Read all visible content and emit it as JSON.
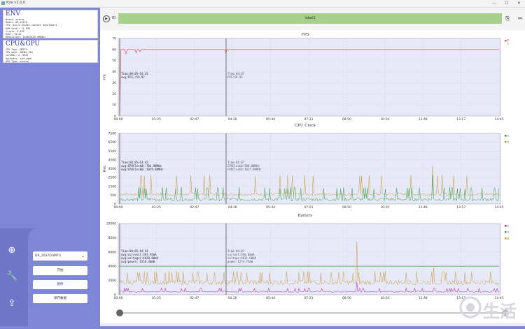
{
  "window": {
    "title": "Kite v1.0.0",
    "min": "—",
    "max": "☐",
    "close": "✕"
  },
  "env": {
    "title": "ENV",
    "lines": [
      "Brand: xxxxxx",
      "Model: DR_201TD",
      "CPU: micro planet contact developers",
      "RAM total: 11.9GB",
      "Crypto: 6,256",
      "Root: false",
      "Resolution: 1440x3120 480dpi"
    ]
  },
  "cpugpu": {
    "title": "CPU&GPU",
    "lines": [
      "CPU Type: MRT7D",
      "CPU mode: ARM64_P64",
      "CoreMax: 0 (0x0)",
      "Hardware: kunlunmm",
      "GPU Type: adreno"
    ]
  },
  "controls": {
    "device_select": "DR_2037D(WIFI)",
    "start_label": "开始",
    "pause_label": "暂停",
    "save_label": "保存数据"
  },
  "toolbar": {
    "tid": "ID",
    "label_text": "label1"
  },
  "time_ticks": [
    "00:00",
    "01:25",
    "02:47",
    "04:26",
    "05:44",
    "07:21",
    "08:50",
    "10:20",
    "11:48",
    "13:17",
    "14:45"
  ],
  "charts": {
    "fps": {
      "title": "FPS",
      "ylabel": "FPS",
      "yticks": [
        "0",
        "10",
        "20",
        "30",
        "40",
        "50",
        "60",
        "70"
      ],
      "legend": [
        "FPS"
      ],
      "legend_sub": "fps.avg",
      "tooltip1": [
        "Time:00:05~14:43",
        "avg(FPS):59.92"
      ],
      "tooltip2": [
        "Time:04:07",
        "FPS:59.92"
      ]
    },
    "cpu": {
      "title": "CPU Clock",
      "ylabel": "MHz",
      "yticks": [
        "0",
        "500",
        "1500",
        "2500",
        "3500",
        "4500",
        "5500",
        "6500",
        "7500"
      ],
      "legend": [
        "cpu:0-5",
        "cpu:6-7"
      ],
      "tooltip1": [
        "Time:00:05~14:43",
        "avg(CPUClock0):702.90MHz",
        "avg(CPUClock6):1029.00MHz"
      ],
      "tooltip2": [
        "Time:04:07",
        "CPUClock0:500.00MHz",
        "CPUClock6:1017.00MHz"
      ]
    },
    "battery": {
      "title": "Battery",
      "yticks": [
        "0",
        "2000",
        "4000",
        "6000",
        "8000",
        "10000"
      ],
      "legend": [
        "current",
        "voltage",
        "power"
      ],
      "tooltip1": [
        "Time:00:05~14:43",
        "avg(current):397.95mA",
        "avg(voltage):4010.00mV",
        "avg(power):1556.30mW"
      ],
      "tooltip2": [
        "Time:04:07",
        "current:546.00mA",
        "voltage:4011.00mV",
        "power:1274.75mW"
      ]
    }
  },
  "colors": {
    "fps": "#e05560",
    "cpu0": "#2e9a3d",
    "cpu6": "#c09a3a",
    "current": "#a51e8f",
    "voltage": "#2eaa3a",
    "power": "#c79a3a",
    "sidebar": "#7f86d8"
  },
  "watermark": "生活"
}
